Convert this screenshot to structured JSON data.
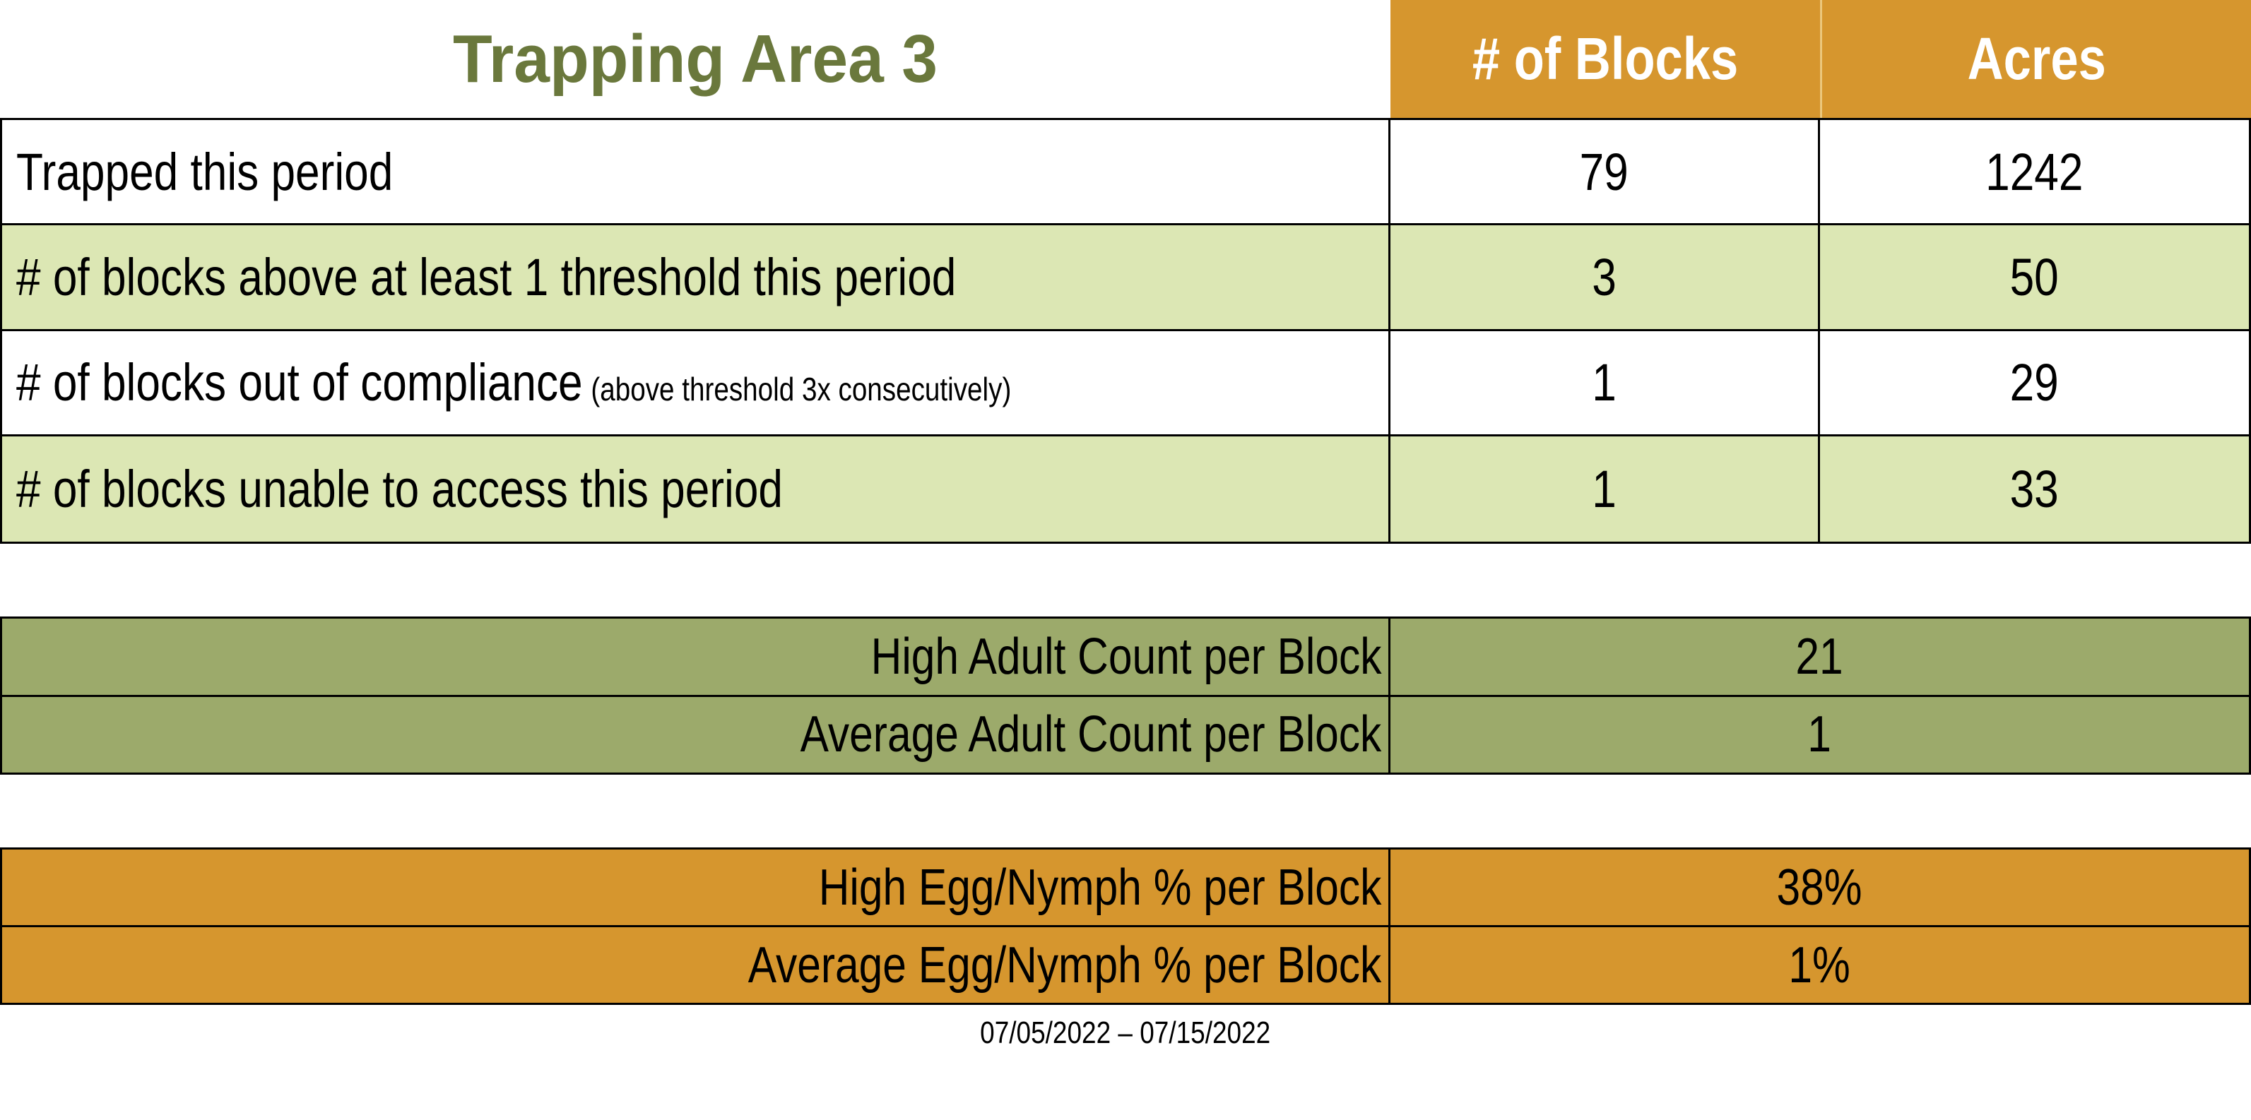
{
  "title": "Trapping Area 3",
  "colors": {
    "title_green": "#6A783C",
    "header_orange": "#D6962E",
    "light_green_row": "#DCE7B4",
    "olive_section": "#9CAA6B",
    "header_text": "#FFFFFF",
    "border": "#000000"
  },
  "table": {
    "column_headers": [
      "# of Blocks",
      "Acres"
    ],
    "rows": [
      {
        "label": "Trapped this period",
        "note": "",
        "blocks": "79",
        "acres": "1242"
      },
      {
        "label": "# of blocks above at least 1 threshold this period",
        "note": "",
        "blocks": "3",
        "acres": "50"
      },
      {
        "label": "# of blocks out of compliance",
        "note": "(above threshold 3x consecutively)",
        "blocks": "1",
        "acres": "29"
      },
      {
        "label": "# of blocks unable to access this period",
        "note": "",
        "blocks": "1",
        "acres": "33"
      }
    ]
  },
  "adult_section": {
    "rows": [
      {
        "label": "High Adult Count per Block",
        "value": "21"
      },
      {
        "label": "Average Adult Count per Block",
        "value": "1"
      }
    ]
  },
  "egg_section": {
    "rows": [
      {
        "label": "High Egg/Nymph % per Block",
        "value": "38%"
      },
      {
        "label": "Average Egg/Nymph % per Block",
        "value": "1%"
      }
    ]
  },
  "date_range": "07/05/2022 – 07/15/2022"
}
